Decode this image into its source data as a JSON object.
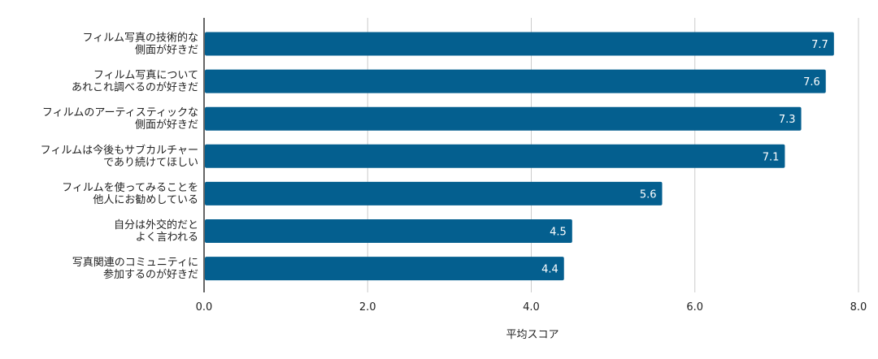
{
  "chart_data": {
    "type": "bar",
    "orientation": "horizontal",
    "categories": [
      [
        "フィルム写真の技術的な",
        "側面が好きだ"
      ],
      [
        "フィルム写真について",
        "あれこれ調べるのが好きだ"
      ],
      [
        "フィルムのアーティスティックな",
        "側面が好きだ"
      ],
      [
        "フィルムは今後もサブカルチャー",
        "であり続けてほしい"
      ],
      [
        "フィルムを使ってみることを",
        "他人にお勧めしている"
      ],
      [
        "自分は外交的だと",
        "よく言われる"
      ],
      [
        "写真関連のコミュニティに",
        "参加するのが好きだ"
      ]
    ],
    "values": [
      7.7,
      7.6,
      7.3,
      7.1,
      5.6,
      4.5,
      4.4
    ],
    "value_labels": [
      "7.7",
      "7.6",
      "7.3",
      "7.1",
      "5.6",
      "4.5",
      "4.4"
    ],
    "xlabel": "平均スコア",
    "xlim": [
      0,
      8
    ],
    "xticks": [
      0,
      2,
      4,
      6,
      8
    ],
    "xtick_labels": [
      "0.0",
      "2.0",
      "4.0",
      "6.0",
      "8.0"
    ],
    "grid": true,
    "bar_color": "#045f8f",
    "value_label_color": "#ffffff",
    "grid_color": "#cccccc",
    "axis_color": "#333333"
  }
}
